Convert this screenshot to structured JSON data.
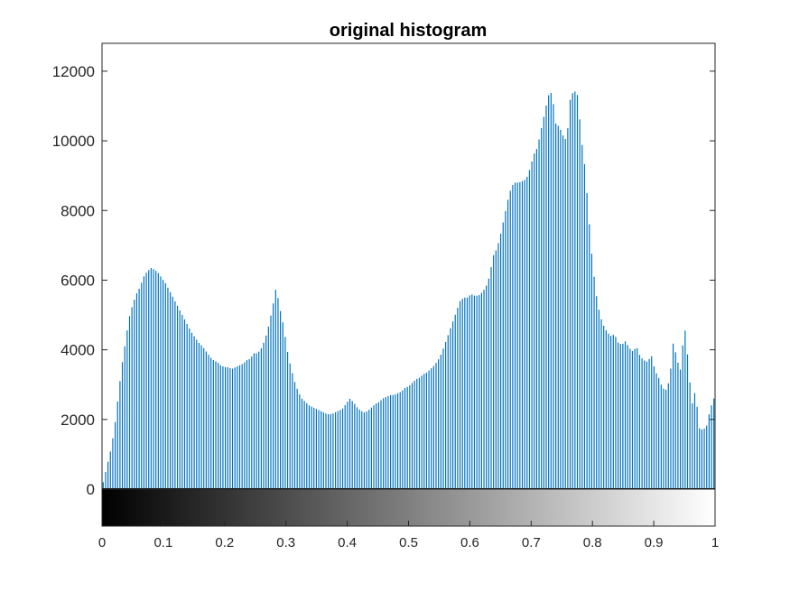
{
  "chart_data": {
    "type": "bar",
    "title": "original histogram",
    "xlabel": "",
    "ylabel": "",
    "xlim": [
      0,
      1
    ],
    "ylim": [
      0,
      12800
    ],
    "bins": 256,
    "bar_color": "#0072BD",
    "grid": false,
    "legend": "none",
    "colorbar": "grayscale black to white",
    "x_ticks": [
      "0",
      "0.1",
      "0.2",
      "0.3",
      "0.4",
      "0.5",
      "0.6",
      "0.7",
      "0.8",
      "0.9",
      "1"
    ],
    "x_tick_values": [
      0,
      0.1,
      0.2,
      0.3,
      0.4,
      0.5,
      0.6,
      0.7,
      0.8,
      0.9,
      1
    ],
    "y_ticks": [
      "0",
      "2000",
      "4000",
      "6000",
      "8000",
      "10000",
      "12000"
    ],
    "y_tick_values": [
      0,
      2000,
      4000,
      6000,
      8000,
      10000,
      12000
    ],
    "control_points": [
      [
        0,
        200
      ],
      [
        1,
        650
      ],
      [
        2,
        1100
      ],
      [
        3,
        1700
      ],
      [
        4,
        2600
      ],
      [
        5,
        3500
      ],
      [
        6,
        4200
      ],
      [
        7,
        4900
      ],
      [
        8,
        5300
      ],
      [
        9,
        5600
      ],
      [
        10,
        5800
      ],
      [
        11,
        6100
      ],
      [
        12,
        6250
      ],
      [
        13,
        6350
      ],
      [
        14,
        6300
      ],
      [
        15,
        6200
      ],
      [
        16,
        6050
      ],
      [
        17,
        5900
      ],
      [
        18,
        5700
      ],
      [
        19,
        5500
      ],
      [
        20,
        5300
      ],
      [
        21,
        5100
      ],
      [
        22,
        4900
      ],
      [
        23,
        4700
      ],
      [
        24,
        4500
      ],
      [
        25,
        4350
      ],
      [
        26,
        4200
      ],
      [
        27,
        4100
      ],
      [
        28,
        3950
      ],
      [
        29,
        3800
      ],
      [
        30,
        3700
      ],
      [
        31,
        3600
      ],
      [
        32,
        3550
      ],
      [
        33,
        3500
      ],
      [
        34,
        3500
      ],
      [
        35,
        3450
      ],
      [
        36,
        3500
      ],
      [
        37,
        3550
      ],
      [
        38,
        3600
      ],
      [
        39,
        3700
      ],
      [
        40,
        3750
      ],
      [
        41,
        3800
      ],
      [
        42,
        3900
      ],
      [
        43,
        4050
      ],
      [
        44,
        4300
      ],
      [
        45,
        4700
      ],
      [
        46,
        5200
      ],
      [
        47,
        5800
      ],
      [
        48,
        5200
      ],
      [
        49,
        4700
      ],
      [
        50,
        4000
      ],
      [
        51,
        3500
      ],
      [
        52,
        3100
      ],
      [
        53,
        2800
      ],
      [
        54,
        2600
      ],
      [
        55,
        2500
      ],
      [
        56,
        2400
      ],
      [
        57,
        2350
      ],
      [
        58,
        2300
      ],
      [
        59,
        2250
      ],
      [
        60,
        2200
      ],
      [
        61,
        2150
      ],
      [
        62,
        2150
      ],
      [
        63,
        2200
      ],
      [
        64,
        2250
      ],
      [
        65,
        2300
      ],
      [
        66,
        2450
      ],
      [
        67,
        2600
      ],
      [
        68,
        2500
      ],
      [
        69,
        2350
      ],
      [
        70,
        2250
      ],
      [
        71,
        2200
      ],
      [
        72,
        2250
      ],
      [
        73,
        2350
      ],
      [
        74,
        2450
      ],
      [
        75,
        2500
      ],
      [
        76,
        2600
      ],
      [
        77,
        2650
      ],
      [
        78,
        2700
      ],
      [
        79,
        2700
      ],
      [
        80,
        2750
      ],
      [
        81,
        2800
      ],
      [
        82,
        2900
      ],
      [
        83,
        2950
      ],
      [
        84,
        3050
      ],
      [
        85,
        3150
      ],
      [
        86,
        3200
      ],
      [
        87,
        3300
      ],
      [
        88,
        3350
      ],
      [
        89,
        3450
      ],
      [
        90,
        3550
      ],
      [
        91,
        3700
      ],
      [
        92,
        3900
      ],
      [
        93,
        4200
      ],
      [
        94,
        4500
      ],
      [
        95,
        4800
      ],
      [
        96,
        5100
      ],
      [
        97,
        5400
      ],
      [
        98,
        5500
      ],
      [
        99,
        5500
      ],
      [
        100,
        5600
      ],
      [
        101,
        5550
      ],
      [
        102,
        5550
      ],
      [
        103,
        5650
      ],
      [
        104,
        5800
      ],
      [
        105,
        6100
      ],
      [
        106,
        6500
      ],
      [
        107,
        6900
      ],
      [
        108,
        7300
      ],
      [
        109,
        7800
      ],
      [
        110,
        8300
      ],
      [
        111,
        8700
      ],
      [
        112,
        8800
      ],
      [
        113,
        8800
      ],
      [
        114,
        8800
      ],
      [
        115,
        8900
      ],
      [
        116,
        9200
      ],
      [
        117,
        9600
      ],
      [
        118,
        10000
      ],
      [
        119,
        10300
      ],
      [
        120,
        11000
      ],
      [
        121,
        11300
      ],
      [
        122,
        11400
      ],
      [
        123,
        10500
      ],
      [
        124,
        10100
      ],
      [
        125,
        10600
      ],
      [
        126,
        10200
      ],
      [
        127,
        10800
      ],
      [
        128,
        11300
      ],
      [
        129,
        11350
      ],
      [
        130,
        11100
      ],
      [
        131,
        9200
      ],
      [
        132,
        7800
      ],
      [
        133,
        6500
      ],
      [
        134,
        5600
      ],
      [
        135,
        5000
      ],
      [
        136,
        4700
      ],
      [
        137,
        4500
      ],
      [
        138,
        4400
      ],
      [
        139,
        4300
      ],
      [
        140,
        4200
      ],
      [
        141,
        4150
      ],
      [
        142,
        4100
      ],
      [
        143,
        4050
      ],
      [
        144,
        3950
      ],
      [
        145,
        3850
      ],
      [
        146,
        3800
      ],
      [
        147,
        3700
      ],
      [
        148,
        3650
      ],
      [
        149,
        3550
      ],
      [
        150,
        3400
      ],
      [
        151,
        3200
      ],
      [
        152,
        3000
      ],
      [
        153,
        2850
      ],
      [
        154,
        3000
      ],
      [
        155,
        3500
      ],
      [
        156,
        3700
      ],
      [
        157,
        3400
      ],
      [
        158,
        3100
      ],
      [
        159,
        2700
      ],
      [
        160,
        2400
      ],
      [
        161,
        2000
      ],
      [
        162,
        1750
      ],
      [
        163,
        1650
      ],
      [
        164,
        1800
      ],
      [
        165,
        2400
      ],
      [
        166,
        1900
      ]
    ],
    "bar_overrides": [
      [
        31,
        3650
      ],
      [
        41,
        3900
      ],
      [
        58,
        2300
      ],
      [
        64,
        2250
      ],
      [
        106,
        6700
      ],
      [
        114,
        8850
      ],
      [
        118,
        9800
      ],
      [
        119,
        10300
      ],
      [
        120,
        10800
      ],
      [
        124,
        10400
      ],
      [
        125,
        10150
      ],
      [
        126,
        10000
      ],
      [
        127,
        11250
      ],
      [
        128,
        11450
      ],
      [
        129,
        11300
      ],
      [
        130,
        10050
      ],
      [
        139,
        4450
      ],
      [
        142,
        4250
      ],
      [
        145,
        4100
      ],
      [
        149,
        3850
      ],
      [
        152,
        2900
      ],
      [
        154,
        3150
      ],
      [
        155,
        4250
      ],
      [
        157,
        3400
      ],
      [
        158,
        4750
      ],
      [
        159,
        3700
      ],
      [
        161,
        2850
      ],
      [
        163,
        1700
      ],
      [
        165,
        2300
      ],
      [
        166,
        2600
      ],
      [
        167,
        1900
      ],
      [
        168,
        1650
      ]
    ]
  }
}
